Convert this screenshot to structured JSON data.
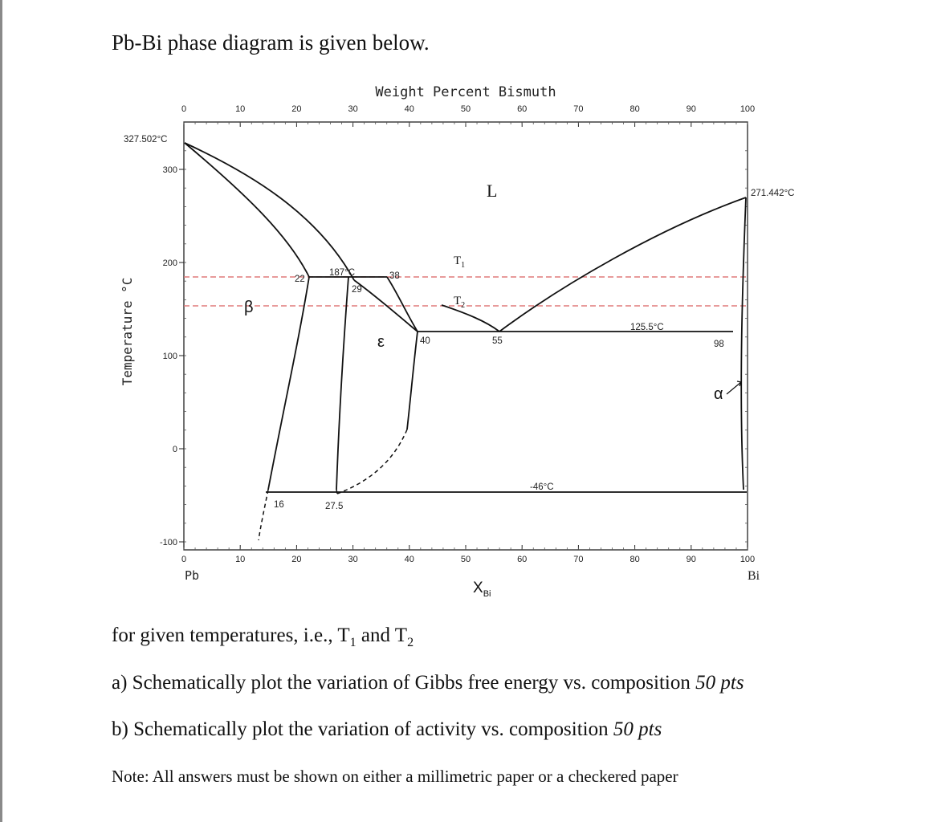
{
  "intro_text": "Pb-Bi phase diagram is given below.",
  "diagram": {
    "top_axis_title": "Weight Percent Bismuth",
    "top_ticks": [
      "0",
      "10",
      "20",
      "30",
      "40",
      "50",
      "60",
      "70",
      "80",
      "90",
      "100"
    ],
    "bottom_ticks": [
      "0",
      "10",
      "20",
      "30",
      "40",
      "50",
      "60",
      "70",
      "80",
      "90",
      "100"
    ],
    "y_ticks": [
      "300",
      "200",
      "100",
      "0",
      "-100"
    ],
    "y_axis_title": "Temperature °C",
    "x_axis_title": "X",
    "x_axis_title_sub": "Bi",
    "left_element": "Pb",
    "right_element": "Bi",
    "pb_melting_label": "327.502°C",
    "bi_melting_label": "271.442°C",
    "phase_L": "L",
    "phase_epsilon": "ε",
    "phase_beta": "β",
    "phase_alpha": "α",
    "t1_label": "T",
    "t1_sub": "1",
    "t2_label": "T",
    "t2_sub": "2",
    "peritectic_temp": "187°C",
    "eutectic_temp": "125.5°C",
    "eutectoid_temp": "-46°C",
    "comp_22": "22",
    "comp_29": "29",
    "comp_38": "38",
    "comp_40": "40",
    "comp_55": "55",
    "comp_98": "98",
    "comp_16": "16",
    "comp_27_5": "27.5",
    "dashed_line_color": "#e07a7a"
  },
  "question": {
    "line1_prefix": "for given temperatures, i.e., T",
    "line1_sub1": "1",
    "line1_mid": " and T",
    "line1_sub2": "2",
    "part_a": "a) Schematically plot the variation of Gibbs free energy vs. composition ",
    "part_a_pts": "50 pts",
    "part_b": "b) Schematically plot the variation of activity vs. composition ",
    "part_b_pts": "50 pts",
    "note": "Note: All answers must be shown on either a millimetric paper or a checkered paper"
  }
}
